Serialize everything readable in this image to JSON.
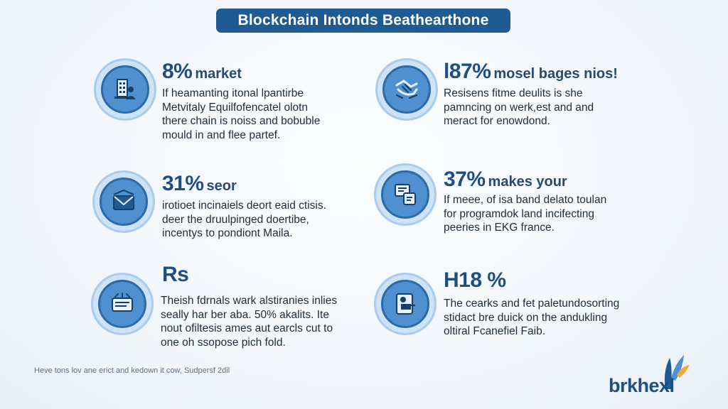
{
  "title": "Blockchain Intonds Beathearthone",
  "cards": [
    {
      "icon": "building-icon",
      "stat": "8%",
      "tag": "market",
      "lines": [
        "If heamanting itonal lpantirbe",
        "Metvitaly Equilfofencatel olotn",
        "there chain is noiss and bobuble",
        "mould in and flee partef."
      ]
    },
    {
      "icon": "handshake-icon",
      "stat": "l87%",
      "tag": "mosel bages nios!",
      "lines": [
        "Resisens fitme deulits is she",
        "pamncing on werk,est and and",
        "meract for enowdond."
      ]
    },
    {
      "icon": "envelope-icon",
      "stat": "31%",
      "tag": "seor",
      "lines": [
        "irotioet incinaiels deort eaid ctisis.",
        "deer the druulpinged doertibe,",
        "incentys to pondiont Maila."
      ]
    },
    {
      "icon": "document-icon",
      "stat": "37%",
      "tag": "makes your",
      "lines": [
        "If meee, of isa band delato toulan",
        "for programdok land incifecting",
        "peeries in EKG france."
      ]
    },
    {
      "icon": "card-icon",
      "stat": "Rs",
      "tag": "",
      "lines": [
        "Theish fdrnals wark alstiranies inlies",
        "seally har ber aba. 50% akalits. Ite",
        "nout ofiltesis ames aut earcls cut to",
        "one oh ssopose pich fold."
      ]
    },
    {
      "icon": "tablet-icon",
      "stat": "H18 %",
      "tag": "",
      "lines": [
        "The cearks and fet paletundosorting",
        "stidact bre duick on the andukling",
        "oltiral Fcanefiel Faib."
      ]
    }
  ],
  "footnote": "Heve tons lov ane erict and kedown it cow, Sudpersf 2dil",
  "logo": {
    "text": "brkhexl"
  },
  "colors": {
    "primary": "#1f5a93",
    "icon_fill": "#4f90d0",
    "icon_ring": "#cfe3f6"
  }
}
